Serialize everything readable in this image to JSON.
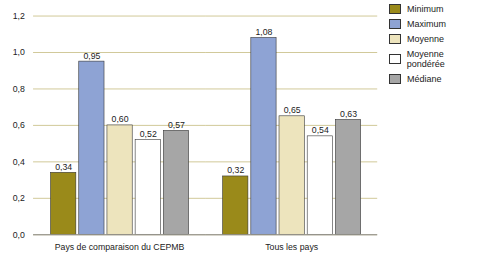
{
  "chart_data": {
    "type": "bar",
    "categories": [
      "Pays de comparaison du CEPMB",
      "Tous les pays"
    ],
    "series": [
      {
        "name": "Minimum",
        "color": "#9a8a1a",
        "values": [
          0.34,
          0.32
        ],
        "value_labels": [
          "0,34",
          "0,32"
        ]
      },
      {
        "name": "Maximum",
        "color": "#8ea3d4",
        "values": [
          0.95,
          1.08
        ],
        "value_labels": [
          "0,95",
          "1,08"
        ]
      },
      {
        "name": "Moyenne",
        "color": "#ede4bd",
        "values": [
          0.6,
          0.65
        ],
        "value_labels": [
          "0,60",
          "0,65"
        ]
      },
      {
        "name": "Moyenne pondérée",
        "color": "#ffffff",
        "values": [
          0.52,
          0.54
        ],
        "value_labels": [
          "0,52",
          "0,54"
        ]
      },
      {
        "name": "Médiane",
        "color": "#a6a6a6",
        "values": [
          0.57,
          0.63
        ],
        "value_labels": [
          "0,57",
          "0,63"
        ]
      }
    ],
    "ylim": [
      0,
      1.2
    ],
    "yticks": [
      {
        "value": 0,
        "label": "0,0"
      },
      {
        "value": 0.2,
        "label": "0,2"
      },
      {
        "value": 0.4,
        "label": "0,4"
      },
      {
        "value": 0.6,
        "label": "0,6"
      },
      {
        "value": 0.8,
        "label": "0,8"
      },
      {
        "value": 1.0,
        "label": "1,0"
      },
      {
        "value": 1.2,
        "label": "1,2"
      }
    ],
    "grid": true,
    "data_labels": true,
    "legend": "right"
  }
}
